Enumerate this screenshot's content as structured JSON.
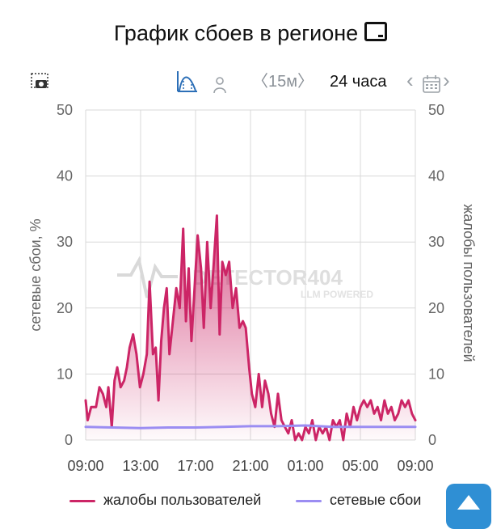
{
  "header": {
    "title": "График сбоев в регионе",
    "title_icon": "tv-icon"
  },
  "toolbar": {
    "screenshot_icon": "camera-icon",
    "chart_mode_icon": "area-chart-icon",
    "person_icon": "person-icon",
    "range_label": "〈15м〉",
    "period_label": "24 часа",
    "calendar_icon": "calendar-icon"
  },
  "watermark": {
    "line1": "DETECTOR404",
    "line2": "LLM POWERED"
  },
  "colors": {
    "complaints": "#cc2566",
    "outages": "#9b8df2",
    "accent": "#2f8fd4",
    "grid": "#d8d8d8"
  },
  "chart_data": {
    "type": "area",
    "x_ticks": [
      "09:00",
      "13:00",
      "17:00",
      "21:00",
      "01:00",
      "05:00",
      "09:00"
    ],
    "ylim": [
      0,
      50
    ],
    "y_ticks": [
      0,
      10,
      20,
      30,
      40,
      50
    ],
    "ylabel_left": "сетевые сбои, %",
    "ylabel_right": "жалобы пользователей",
    "grid": true,
    "legend_position": "bottom",
    "series": [
      {
        "name": "жалобы пользователей",
        "axis": "right",
        "x_hours": [
          0,
          0.15,
          0.4,
          0.75,
          1.0,
          1.25,
          1.5,
          1.65,
          1.9,
          2.1,
          2.3,
          2.55,
          2.8,
          3.0,
          3.2,
          3.45,
          3.7,
          3.95,
          4.2,
          4.45,
          4.65,
          4.9,
          5.1,
          5.3,
          5.5,
          5.7,
          5.9,
          6.1,
          6.4,
          6.6,
          6.85,
          7.1,
          7.3,
          7.5,
          7.7,
          7.9,
          8.15,
          8.4,
          8.6,
          8.85,
          9.1,
          9.3,
          9.55,
          9.75,
          9.95,
          10.2,
          10.45,
          10.7,
          10.95,
          11.2,
          11.45,
          11.65,
          11.9,
          12.1,
          12.35,
          12.6,
          12.85,
          13.05,
          13.3,
          13.5,
          13.75,
          14.0,
          14.25,
          14.5,
          14.75,
          15.0,
          15.25,
          15.5,
          15.75,
          16.0,
          16.25,
          16.5,
          16.75,
          17.0,
          17.25,
          17.5,
          17.75,
          18.0,
          18.25,
          18.5,
          18.75,
          19.0,
          19.25,
          19.5,
          19.75,
          20.0,
          20.25,
          20.5,
          20.75,
          21.0,
          21.25,
          21.5,
          21.75,
          22.0,
          22.25,
          22.5,
          22.75,
          23.0,
          23.25,
          23.5,
          23.75,
          24.0
        ],
        "values": [
          6,
          3,
          5,
          5,
          8,
          7,
          5,
          8,
          2,
          9,
          11,
          8,
          9,
          11,
          14,
          16,
          13,
          8,
          10,
          13,
          24,
          13,
          14,
          6,
          15,
          20,
          23,
          13,
          19,
          23,
          20,
          32,
          18,
          26,
          15,
          22,
          31,
          26,
          17,
          30,
          20,
          26,
          34,
          16,
          27,
          25,
          27,
          20,
          23,
          17,
          18,
          17,
          11,
          7,
          5,
          10,
          5,
          9,
          7,
          4,
          2,
          7,
          3,
          2,
          1,
          3,
          0,
          1,
          0,
          2,
          1,
          3,
          0,
          2,
          1,
          2,
          0,
          3,
          2,
          3,
          0,
          4,
          2,
          5,
          3,
          5,
          6,
          5,
          6,
          4,
          5,
          3,
          6,
          4,
          5,
          3,
          4,
          6,
          5,
          6,
          4,
          3
        ]
      },
      {
        "name": "сетевые сбои",
        "axis": "left",
        "x_hours": [
          0,
          2,
          4,
          6,
          8,
          10,
          12,
          14,
          16,
          17,
          18,
          20,
          22,
          24
        ],
        "values": [
          2,
          1.9,
          1.8,
          1.9,
          1.9,
          2,
          2.1,
          2.1,
          2.2,
          2.1,
          2,
          2,
          2,
          2
        ]
      }
    ]
  },
  "legend": {
    "complaints_label": "жалобы пользователей",
    "outages_label": "сетевые сбои"
  },
  "fab": {
    "icon": "arrow-up-icon"
  }
}
